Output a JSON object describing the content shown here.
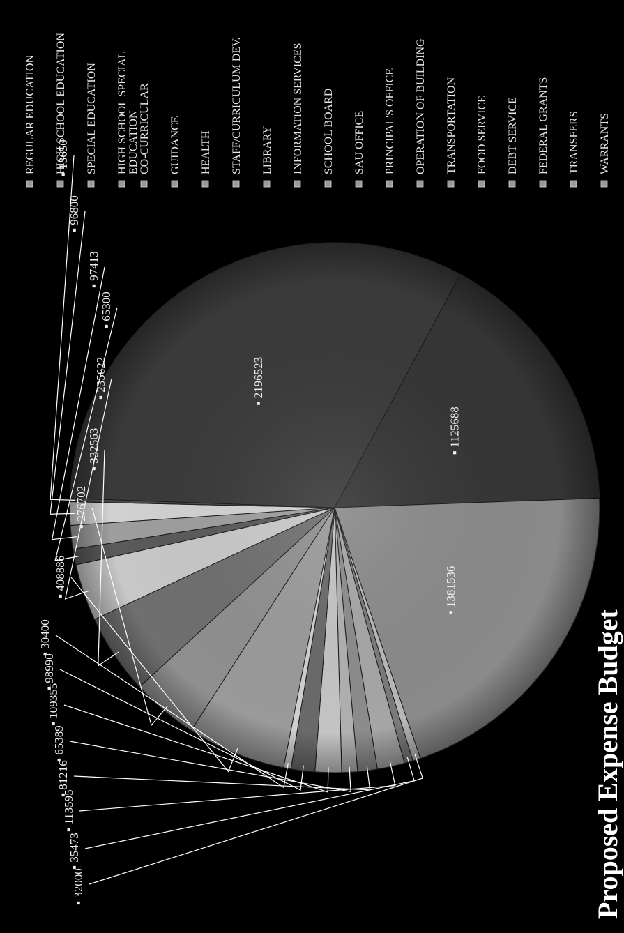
{
  "chart_data": {
    "type": "pie",
    "title": "Proposed Expense Budget",
    "legend_placement": "right",
    "categories": [
      "REGULAR EDUCATION",
      "HIGH SCHOOL EDUCATION",
      "SPECIAL EDUCATION",
      "HIGH SCHOOL SPECIAL EDUCATION",
      "CO-CURRICULAR",
      "GUIDANCE",
      "HEALTH",
      "STAFF/CURRICULUM DEV.",
      "LIBRARY",
      "INFORMATION SERVICES",
      "SCHOOL BOARD",
      "SAU OFFICE",
      "PRINCIPAL'S OFFICE",
      "OPERATION OF BUILDING",
      "TRANSPORTATION",
      "FOOD SERVICE",
      "DEBT SERVICE",
      "FEDERAL GRANTS",
      "TRANSFERS",
      "WARRANTS"
    ],
    "values": [
      2196523,
      1125688,
      1381536,
      32000,
      35473,
      113595,
      81216,
      65389,
      109355,
      98990,
      30400,
      408886,
      276702,
      332563,
      235622,
      65300,
      97413,
      96800,
      13650,
      0
    ],
    "legend_labels": [
      "REGULAR EDUCATION",
      "HIGH SCHOOL EDUCATION",
      "SPECIAL EDUCATION",
      "HIGH SCHOOL SPECIAL EDUCATION",
      "CO-CURRICULAR",
      "GUIDANCE",
      "HEALTH",
      "STAFF/CURRICULUM DEV.",
      "LIBRARY",
      "INFORMATION SERVICES",
      "SCHOOL BOARD",
      "SAU OFFICE",
      "PRINCIPAL'S OFFICE",
      "OPERATION OF BUILDING",
      "TRANSPORTATION",
      "FOOD SERVICE",
      "DEBT SERVICE",
      "FEDERAL GRANTS",
      "TRANSFERS",
      "WARRANTS"
    ],
    "data_labels": [
      "2196523",
      "1125688",
      "1381536",
      "32000",
      "35473",
      "113595",
      "81216",
      "65389",
      "109355",
      "98990",
      "30400",
      "408886",
      "276702",
      "332563",
      "235622",
      "65300",
      "97413",
      "96800",
      "13650",
      ""
    ],
    "rotation": "page rotated 90 degrees counter-clockwise",
    "colors": [
      "#3a3a3a",
      "#353535",
      "#8a8a8a",
      "#b8b8b8",
      "#7a7a7a",
      "#a6a6a6",
      "#8c8c8c",
      "#b0b0b0",
      "#c4c4c4",
      "#6a6a6a",
      "#d0d0d0",
      "#9a9a9a",
      "#8f8f8f",
      "#6f6f6f",
      "#c8c8c8",
      "#5a5a5a",
      "#9e9e9e",
      "#d2d2d2",
      "#4a4a4a",
      "#808080"
    ]
  }
}
